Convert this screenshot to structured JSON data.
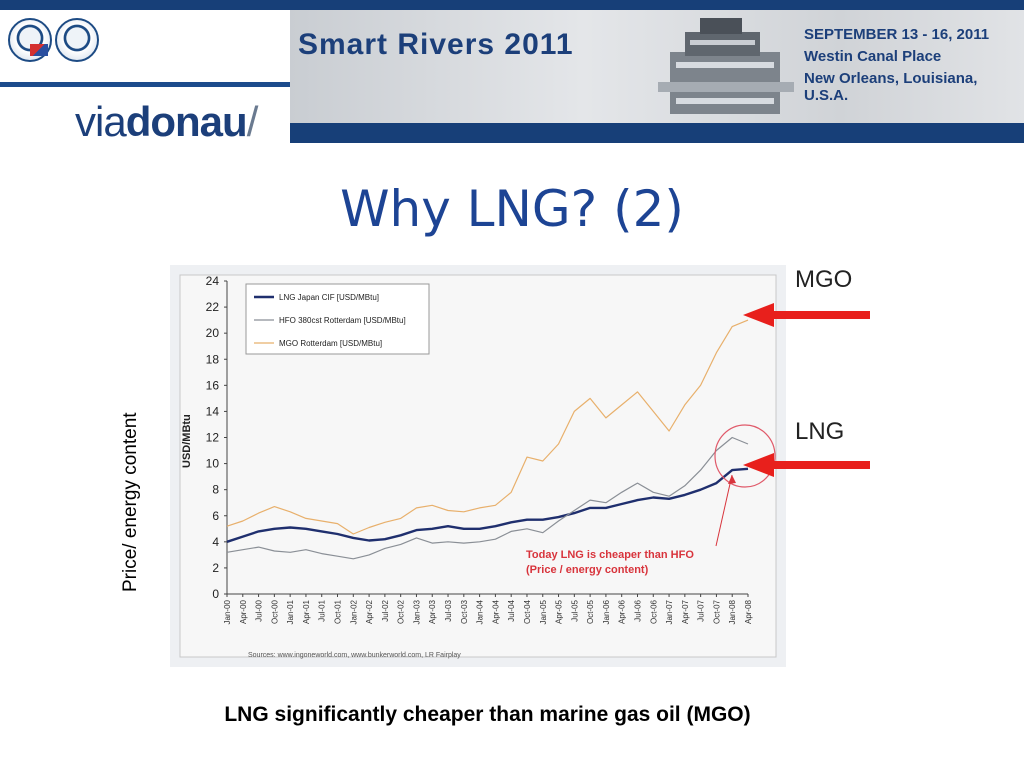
{
  "header": {
    "org_light": "via",
    "org_bold": "donau",
    "org_slash": "/",
    "conference": "Smart Rivers 2011",
    "event_lines": [
      "SEPTEMBER 13 - 16, 2011",
      "Westin Canal Place",
      "New Orleans, Louisiana, U.S.A."
    ]
  },
  "slide": {
    "title": "Why LNG? (2)",
    "side_label": "Price/ energy content",
    "caption": "LNG significantly cheaper than marine gas oil (MGO)",
    "callouts": {
      "mgo": "MGO",
      "lng": "LNG"
    },
    "annotation": [
      "Today LNG is cheaper than HFO",
      "(Price / energy content)"
    ],
    "sources": "Sources: www.ingoneworld.com, www.bunkerworld.com, LR Fairplay"
  },
  "colors": {
    "title": "#1d4494",
    "lng": "#1f2f6e",
    "hfo": "#8a8f96",
    "mgo": "#e8b06c",
    "annotation": "#d8343c",
    "arrow": "#e8201c"
  },
  "chart_data": {
    "type": "line",
    "ylabel": "USD/MBtu",
    "ylim": [
      0,
      24
    ],
    "yticks": [
      0,
      2,
      4,
      6,
      8,
      10,
      12,
      14,
      16,
      18,
      20,
      22,
      24
    ],
    "x": [
      "Jan-00",
      "Apr-00",
      "Jul-00",
      "Oct-00",
      "Jan-01",
      "Apr-01",
      "Jul-01",
      "Oct-01",
      "Jan-02",
      "Apr-02",
      "Jul-02",
      "Oct-02",
      "Jan-03",
      "Apr-03",
      "Jul-03",
      "Oct-03",
      "Jan-04",
      "Apr-04",
      "Jul-04",
      "Oct-04",
      "Jan-05",
      "Apr-05",
      "Jul-05",
      "Oct-05",
      "Jan-06",
      "Apr-06",
      "Jul-06",
      "Oct-06",
      "Jan-07",
      "Apr-07",
      "Jul-07",
      "Oct-07",
      "Jan-08",
      "Apr-08"
    ],
    "series": [
      {
        "name": "LNG Japan CIF [USD/MBtu]",
        "values": [
          4.0,
          4.4,
          4.8,
          5.0,
          5.1,
          5.0,
          4.8,
          4.6,
          4.3,
          4.1,
          4.2,
          4.5,
          4.9,
          5.0,
          5.2,
          5.0,
          5.0,
          5.2,
          5.5,
          5.7,
          5.7,
          5.9,
          6.2,
          6.6,
          6.6,
          6.9,
          7.2,
          7.4,
          7.3,
          7.6,
          8.0,
          8.5,
          9.5,
          9.6
        ]
      },
      {
        "name": "HFO 380cst Rotterdam [USD/MBtu]",
        "values": [
          3.2,
          3.4,
          3.6,
          3.3,
          3.2,
          3.4,
          3.1,
          2.9,
          2.7,
          3.0,
          3.5,
          3.8,
          4.3,
          3.9,
          4.0,
          3.9,
          4.0,
          4.2,
          4.8,
          5.0,
          4.7,
          5.6,
          6.4,
          7.2,
          7.0,
          7.8,
          8.5,
          7.8,
          7.5,
          8.3,
          9.5,
          11.0,
          12.0,
          11.5
        ]
      },
      {
        "name": "MGO Rotterdam [USD/MBtu]",
        "values": [
          5.2,
          5.6,
          6.2,
          6.7,
          6.3,
          5.8,
          5.6,
          5.4,
          4.6,
          5.1,
          5.5,
          5.8,
          6.6,
          6.8,
          6.4,
          6.3,
          6.6,
          6.8,
          7.8,
          10.5,
          10.2,
          11.5,
          14.0,
          15.0,
          13.5,
          14.5,
          15.5,
          14.0,
          12.5,
          14.5,
          16.0,
          18.5,
          20.5,
          21.0
        ]
      }
    ],
    "legend": "top-left",
    "grid": false
  }
}
